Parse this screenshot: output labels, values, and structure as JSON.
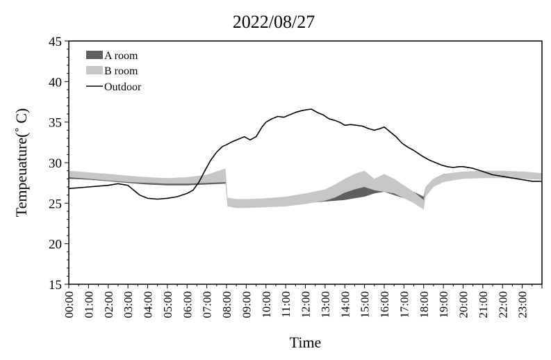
{
  "chart_data": {
    "type": "area",
    "title": "2022/08/27",
    "xlabel": "Time",
    "ylabel": "Tempeuature(˚ C)",
    "ylim": [
      15,
      45
    ],
    "yticks": [
      15,
      20,
      25,
      30,
      35,
      40,
      45
    ],
    "xticks": [
      "00:00",
      "01:00",
      "02:00",
      "03:00",
      "04:00",
      "05:00",
      "06:00",
      "07:00",
      "08:00",
      "09:00",
      "10:00",
      "11:00",
      "12:00",
      "13:00",
      "14:00",
      "15:00",
      "16:00",
      "17:00",
      "18:00",
      "19:00",
      "20:00",
      "21:00",
      "22:00",
      "23:00"
    ],
    "x_unit": "hour of day",
    "xlim": [
      0,
      24
    ],
    "grid": false,
    "legend_position": "top-left",
    "series": [
      {
        "name": "A room",
        "style": "band",
        "color": "#5f5f5f",
        "x": [
          0,
          1,
          2,
          3,
          4,
          5,
          6,
          7,
          7.95,
          8.05,
          8.5,
          9,
          10,
          11,
          12,
          13,
          14,
          14.5,
          15,
          15.5,
          16,
          16.5,
          17,
          17.5,
          18,
          18.1,
          18.5,
          19,
          20,
          21,
          22,
          23,
          24
        ],
        "lower": [
          28.0,
          27.9,
          27.7,
          27.5,
          27.3,
          27.2,
          27.2,
          27.3,
          27.4,
          24.8,
          24.6,
          24.6,
          24.7,
          24.8,
          25.0,
          25.2,
          25.4,
          25.6,
          25.8,
          26.2,
          26.4,
          26.0,
          25.6,
          25.2,
          24.8,
          26.0,
          27.2,
          27.8,
          28.1,
          28.2,
          28.2,
          28.1,
          28.0
        ],
        "upper": [
          28.6,
          28.4,
          28.2,
          28.0,
          27.8,
          27.7,
          27.7,
          27.8,
          28.0,
          25.6,
          25.4,
          25.4,
          25.5,
          25.6,
          25.8,
          26.1,
          26.5,
          26.8,
          27.2,
          27.6,
          27.9,
          27.6,
          27.0,
          26.4,
          25.8,
          27.0,
          28.0,
          28.6,
          28.8,
          28.9,
          28.9,
          28.8,
          28.6
        ]
      },
      {
        "name": "B room",
        "style": "band",
        "color": "#c6c6c6",
        "x": [
          0,
          1,
          2,
          3,
          4,
          5,
          6,
          7,
          7.95,
          8.05,
          8.5,
          9,
          10,
          11,
          12,
          13,
          13.5,
          14,
          14.5,
          15,
          15.5,
          16,
          16.5,
          17,
          17.5,
          18,
          18.1,
          18.5,
          19,
          20,
          21,
          22,
          23,
          24
        ],
        "lower": [
          28.2,
          28.0,
          27.8,
          27.6,
          27.5,
          27.4,
          27.4,
          27.5,
          27.6,
          24.6,
          24.4,
          24.4,
          24.5,
          24.6,
          24.9,
          25.3,
          25.7,
          26.3,
          26.7,
          27.0,
          26.6,
          26.4,
          26.2,
          25.6,
          25.0,
          24.2,
          25.8,
          27.0,
          27.6,
          28.0,
          28.1,
          28.1,
          28.0,
          27.9
        ],
        "upper": [
          29.0,
          28.8,
          28.6,
          28.4,
          28.2,
          28.1,
          28.2,
          28.5,
          29.3,
          25.7,
          25.5,
          25.5,
          25.6,
          25.8,
          26.2,
          26.7,
          27.3,
          28.0,
          28.6,
          29.0,
          28.0,
          28.6,
          28.0,
          27.2,
          26.4,
          25.4,
          27.0,
          28.0,
          28.6,
          28.9,
          29.0,
          29.0,
          28.9,
          28.7
        ]
      },
      {
        "name": "Outdoor",
        "style": "line",
        "color": "#000000",
        "x": [
          0,
          0.5,
          1,
          1.5,
          2,
          2.5,
          3,
          3.3,
          3.6,
          4,
          4.5,
          5,
          5.5,
          6,
          6.3,
          6.6,
          6.9,
          7.2,
          7.5,
          7.8,
          8,
          8.3,
          8.6,
          8.9,
          9.2,
          9.5,
          9.8,
          10,
          10.3,
          10.6,
          10.9,
          11.2,
          11.5,
          11.8,
          12,
          12.3,
          12.6,
          12.9,
          13.2,
          13.5,
          13.8,
          14,
          14.3,
          14.6,
          14.9,
          15.2,
          15.5,
          15.8,
          16,
          16.3,
          16.6,
          16.9,
          17.2,
          17.5,
          17.8,
          18,
          18.3,
          18.6,
          18.9,
          19.2,
          19.5,
          19.8,
          20,
          20.5,
          21,
          21.5,
          22,
          22.5,
          23,
          23.5,
          24
        ],
        "y": [
          26.8,
          26.9,
          27.0,
          27.1,
          27.2,
          27.4,
          27.2,
          26.6,
          26.0,
          25.6,
          25.5,
          25.6,
          25.8,
          26.2,
          26.6,
          27.6,
          29.0,
          30.3,
          31.3,
          32.0,
          32.2,
          32.6,
          32.9,
          33.2,
          32.8,
          33.2,
          34.4,
          35.0,
          35.4,
          35.7,
          35.6,
          35.9,
          36.2,
          36.4,
          36.5,
          36.6,
          36.2,
          35.9,
          35.4,
          35.2,
          34.9,
          34.6,
          34.7,
          34.6,
          34.5,
          34.2,
          34.0,
          34.2,
          34.4,
          33.8,
          33.2,
          32.4,
          31.9,
          31.5,
          31.0,
          30.7,
          30.3,
          30.0,
          29.7,
          29.5,
          29.4,
          29.5,
          29.5,
          29.3,
          28.9,
          28.5,
          28.3,
          28.1,
          27.9,
          27.7,
          27.7
        ]
      }
    ]
  }
}
